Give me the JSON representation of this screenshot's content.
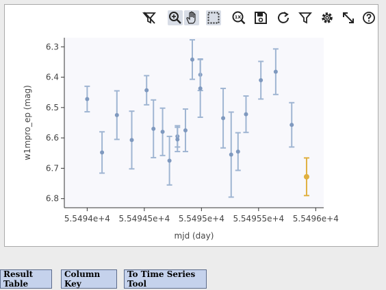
{
  "toolbar": {
    "icons": [
      "no-filter-icon",
      "zoom-icon",
      "pan-icon",
      "select-icon",
      "zoom-1x-icon",
      "save-icon",
      "restore-icon",
      "filter-icon",
      "settings-icon",
      "expand-icon",
      "help-icon"
    ],
    "zoom_1x_label": "1X"
  },
  "buttons": {
    "result_table": "Result Table",
    "column_key": "Column Key",
    "time_series_tool": "To Time Series Tool"
  },
  "colors": {
    "point": "#7f99bf",
    "errorbar": "#9fb5d2",
    "highlight": "#e0b040",
    "plot_bg": "#f8f8fc"
  },
  "chart_data": {
    "type": "scatter",
    "xlabel": "mjd (day)",
    "ylabel": "w1mpro_ep (mag)",
    "x_ticks": [
      "5.5494e+4",
      "5.54945e+4",
      "5.5495e+4",
      "5.54955e+4",
      "5.5496e+4"
    ],
    "x_tick_values": [
      55494,
      55494.5,
      55495,
      55495.5,
      55496
    ],
    "y_ticks": [
      "6.3",
      "6.4",
      "6.5",
      "6.6",
      "6.7",
      "6.8"
    ],
    "y_tick_values": [
      6.3,
      6.4,
      6.5,
      6.6,
      6.7,
      6.8
    ],
    "xlim": [
      55493.8,
      55496.07
    ],
    "ylim": [
      6.27,
      6.83
    ],
    "y_inverted": true,
    "series": [
      {
        "points": [
          {
            "x": 55494.0,
            "y": 6.472,
            "err": 0.042
          },
          {
            "x": 55494.13,
            "y": 6.648,
            "err": 0.068
          },
          {
            "x": 55494.26,
            "y": 6.525,
            "err": 0.08
          },
          {
            "x": 55494.39,
            "y": 6.607,
            "err": 0.095
          },
          {
            "x": 55494.52,
            "y": 6.443,
            "err": 0.048
          },
          {
            "x": 55494.58,
            "y": 6.57,
            "err": 0.095
          },
          {
            "x": 55494.66,
            "y": 6.58,
            "err": 0.078
          },
          {
            "x": 55494.72,
            "y": 6.675,
            "err": 0.08
          },
          {
            "x": 55494.79,
            "y": 6.595,
            "err": 0.035
          },
          {
            "x": 55494.79,
            "y": 6.605,
            "err": 0.04
          },
          {
            "x": 55494.86,
            "y": 6.575,
            "err": 0.07
          },
          {
            "x": 55494.92,
            "y": 6.342,
            "err": 0.065
          },
          {
            "x": 55494.99,
            "y": 6.392,
            "err": 0.052
          },
          {
            "x": 55494.99,
            "y": 6.437,
            "err": 0.095
          },
          {
            "x": 55495.19,
            "y": 6.535,
            "err": 0.098
          },
          {
            "x": 55495.26,
            "y": 6.655,
            "err": 0.14
          },
          {
            "x": 55495.32,
            "y": 6.645,
            "err": 0.062
          },
          {
            "x": 55495.39,
            "y": 6.522,
            "err": 0.06
          },
          {
            "x": 55495.52,
            "y": 6.41,
            "err": 0.062
          },
          {
            "x": 55495.65,
            "y": 6.382,
            "err": 0.075
          },
          {
            "x": 55495.79,
            "y": 6.557,
            "err": 0.073
          }
        ]
      },
      {
        "highlighted": true,
        "points": [
          {
            "x": 55495.92,
            "y": 6.728,
            "err": 0.062
          }
        ]
      }
    ]
  }
}
